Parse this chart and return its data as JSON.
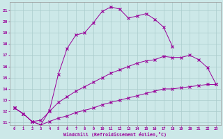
{
  "xlabel": "Windchill (Refroidissement éolien,°C)",
  "bg_color": "#cce8e8",
  "line_color": "#990099",
  "grid_color": "#aacccc",
  "xlim": [
    -0.5,
    23.5
  ],
  "ylim": [
    10.8,
    21.7
  ],
  "s1_x": [
    0,
    1,
    2,
    3,
    4,
    5,
    6,
    7,
    8,
    9,
    10,
    11,
    12,
    13,
    14,
    15,
    16,
    17,
    18
  ],
  "s1_y": [
    12.3,
    11.8,
    11.1,
    10.8,
    12.1,
    15.3,
    17.6,
    18.8,
    19.0,
    19.9,
    20.9,
    21.3,
    21.1,
    20.3,
    20.5,
    20.7,
    20.2,
    19.5,
    17.8
  ],
  "s2_x": [
    0,
    1,
    2,
    3,
    4,
    5,
    6,
    7,
    8,
    9,
    10,
    11,
    12,
    13,
    14,
    15,
    16,
    17,
    18,
    19,
    20,
    21,
    22,
    23
  ],
  "s2_y": [
    12.3,
    11.8,
    11.1,
    11.2,
    12.0,
    12.8,
    13.3,
    13.8,
    14.2,
    14.6,
    15.0,
    15.4,
    15.7,
    16.0,
    16.3,
    16.5,
    16.6,
    16.9,
    16.8,
    16.8,
    17.0,
    16.6,
    15.9,
    14.4
  ],
  "s3_x": [
    0,
    1,
    2,
    3,
    4,
    5,
    6,
    7,
    8,
    9,
    10,
    11,
    12,
    13,
    14,
    15,
    16,
    17,
    18,
    19,
    20,
    21,
    22,
    23
  ],
  "s3_y": [
    12.3,
    11.8,
    11.1,
    10.8,
    11.1,
    11.4,
    11.6,
    11.9,
    12.1,
    12.3,
    12.6,
    12.8,
    13.0,
    13.2,
    13.4,
    13.6,
    13.8,
    14.0,
    14.0,
    14.1,
    14.2,
    14.3,
    14.4,
    14.4
  ]
}
